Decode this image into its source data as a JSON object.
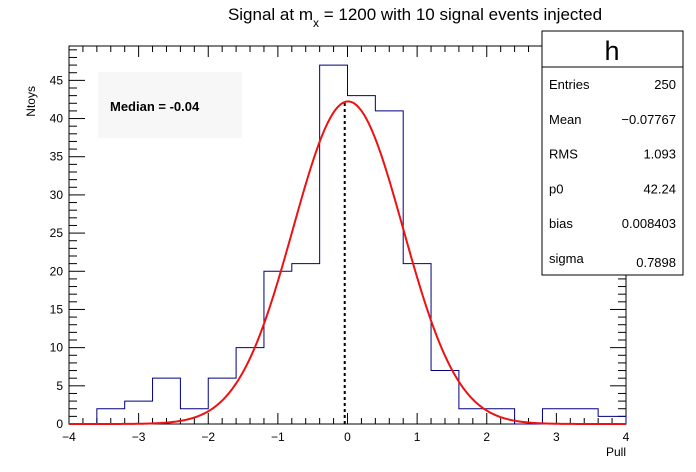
{
  "chart_data": {
    "type": "bar",
    "title_main": "Signal at m",
    "title_sub": "x",
    "title_rest": " = 1200 with 10 signal events injected",
    "xlabel": "Pull",
    "ylabel": "Ntoys",
    "xlim": [
      -4,
      4
    ],
    "ylim": [
      0,
      49.5
    ],
    "x_ticks": [
      -4,
      -3,
      -2,
      -1,
      0,
      1,
      2,
      3,
      4
    ],
    "y_ticks": [
      0,
      5,
      10,
      15,
      20,
      25,
      30,
      35,
      40,
      45
    ],
    "bin_edges": [
      -4.0,
      -3.6,
      -3.2,
      -2.8,
      -2.4,
      -2.0,
      -1.6,
      -1.2,
      -0.8,
      -0.4,
      0.0,
      0.4,
      0.8,
      1.2,
      1.6,
      2.0,
      2.4,
      2.8,
      3.2,
      3.6,
      4.0
    ],
    "counts": [
      0,
      2,
      3,
      6,
      2,
      6,
      10,
      20,
      21,
      47,
      43,
      41,
      21,
      7,
      2,
      2,
      0,
      2,
      2,
      1
    ],
    "fit": {
      "function": "gaus",
      "constant": 42.24,
      "mean": 0.008403,
      "sigma": 0.7898
    },
    "median": -0.04,
    "median_label": "Median = -0.04",
    "stats": {
      "name": "h",
      "rows": [
        {
          "label": "Entries",
          "value": "250"
        },
        {
          "label": "Mean",
          "value": "−0.07767"
        },
        {
          "label": "RMS",
          "value": "1.093"
        },
        {
          "label": "p0",
          "value": "42.24"
        },
        {
          "label": "bias",
          "value": "0.008403"
        },
        {
          "label": "sigma",
          "value": "0.7898"
        }
      ]
    },
    "colors": {
      "histogram": "#000080",
      "fit": "#ee1111",
      "median_line": "#000000"
    }
  }
}
